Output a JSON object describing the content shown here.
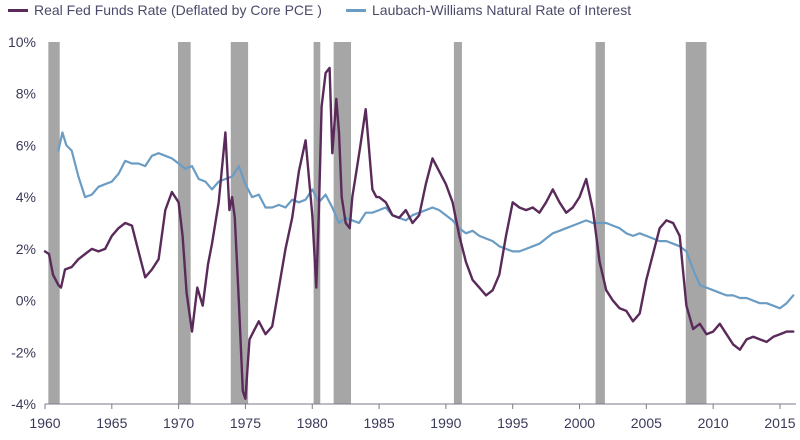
{
  "chart_data": {
    "type": "line",
    "title": "",
    "xlabel": "",
    "ylabel": "",
    "xlim": [
      1960,
      2016.2
    ],
    "ylim": [
      -4,
      10
    ],
    "x_ticks": [
      1960,
      1965,
      1970,
      1975,
      1980,
      1985,
      1990,
      1995,
      2000,
      2005,
      2010,
      2015
    ],
    "y_ticks": [
      -4,
      -2,
      0,
      2,
      4,
      6,
      8,
      10
    ],
    "y_tick_labels": [
      "-4%",
      "-2%",
      "0%",
      "2%",
      "4%",
      "6%",
      "8%",
      "10%"
    ],
    "grid": false,
    "legend_position": "top",
    "recessions": [
      [
        1960.25,
        1961.1
      ],
      [
        1969.95,
        1970.9
      ],
      [
        1973.9,
        1975.2
      ],
      [
        1980.1,
        1980.6
      ],
      [
        1981.6,
        1982.9
      ],
      [
        1990.6,
        1991.2
      ],
      [
        2001.2,
        2001.9
      ],
      [
        2007.95,
        2009.5
      ]
    ],
    "series": [
      {
        "name": "Real Fed Funds Rate (Deflated by Core PCE )",
        "color": "#5a2a5a",
        "x": [
          1960.0,
          1960.3,
          1960.6,
          1961.0,
          1961.2,
          1961.5,
          1962.0,
          1962.5,
          1963.0,
          1963.5,
          1964.0,
          1964.5,
          1965.0,
          1965.5,
          1966.0,
          1966.5,
          1967.0,
          1967.5,
          1968.0,
          1968.5,
          1969.0,
          1969.5,
          1970.0,
          1970.3,
          1970.6,
          1971.0,
          1971.4,
          1971.8,
          1972.2,
          1972.5,
          1973.0,
          1973.5,
          1973.8,
          1974.0,
          1974.2,
          1974.5,
          1974.8,
          1975.0,
          1975.3,
          1975.6,
          1976.0,
          1976.5,
          1977.0,
          1977.5,
          1978.0,
          1978.5,
          1979.0,
          1979.5,
          1980.0,
          1980.3,
          1980.5,
          1980.7,
          1981.0,
          1981.3,
          1981.5,
          1981.8,
          1982.0,
          1982.2,
          1982.5,
          1982.8,
          1983.0,
          1983.3,
          1983.6,
          1984.0,
          1984.5,
          1984.8,
          1985.0,
          1985.5,
          1986.0,
          1986.5,
          1987.0,
          1987.5,
          1988.0,
          1988.5,
          1989.0,
          1989.5,
          1990.0,
          1990.5,
          1991.0,
          1991.5,
          1992.0,
          1992.5,
          1993.0,
          1993.5,
          1994.0,
          1994.5,
          1995.0,
          1995.5,
          1996.0,
          1996.5,
          1997.0,
          1997.5,
          1998.0,
          1998.5,
          1999.0,
          1999.5,
          2000.0,
          2000.5,
          2001.0,
          2001.5,
          2002.0,
          2002.5,
          2003.0,
          2003.5,
          2004.0,
          2004.5,
          2005.0,
          2005.5,
          2006.0,
          2006.5,
          2007.0,
          2007.5,
          2008.0,
          2008.5,
          2009.0,
          2009.5,
          2010.0,
          2010.5,
          2011.0,
          2011.5,
          2012.0,
          2012.5,
          2013.0,
          2013.5,
          2014.0,
          2014.5,
          2015.0,
          2015.5,
          2016.0
        ],
        "values": [
          1.9,
          1.8,
          1.0,
          0.6,
          0.5,
          1.2,
          1.3,
          1.6,
          1.8,
          2.0,
          1.9,
          2.0,
          2.5,
          2.8,
          3.0,
          2.9,
          1.9,
          0.9,
          1.2,
          1.6,
          3.5,
          4.2,
          3.8,
          2.5,
          0.3,
          -1.2,
          0.5,
          -0.2,
          1.4,
          2.2,
          3.8,
          6.5,
          3.5,
          4.0,
          3.2,
          0.0,
          -3.5,
          -3.8,
          -1.5,
          -1.2,
          -0.8,
          -1.3,
          -1.0,
          0.5,
          2.0,
          3.2,
          5.0,
          6.2,
          3.3,
          0.5,
          3.5,
          7.5,
          8.8,
          9.0,
          5.7,
          7.8,
          6.5,
          4.0,
          3.0,
          2.8,
          4.0,
          5.0,
          6.0,
          7.4,
          4.3,
          4.0,
          4.0,
          3.8,
          3.3,
          3.2,
          3.5,
          3.0,
          3.3,
          4.5,
          5.5,
          5.0,
          4.5,
          3.8,
          2.5,
          1.5,
          0.8,
          0.5,
          0.2,
          0.4,
          1.0,
          2.5,
          3.8,
          3.6,
          3.5,
          3.6,
          3.4,
          3.8,
          4.3,
          3.8,
          3.4,
          3.6,
          4.0,
          4.7,
          3.5,
          1.5,
          0.4,
          0.0,
          -0.3,
          -0.4,
          -0.8,
          -0.5,
          0.8,
          1.8,
          2.8,
          3.1,
          3.0,
          2.5,
          -0.2,
          -1.1,
          -0.9,
          -1.3,
          -1.2,
          -0.9,
          -1.3,
          -1.7,
          -1.9,
          -1.5,
          -1.4,
          -1.5,
          -1.6,
          -1.4,
          -1.3,
          -1.2,
          -1.2
        ]
      },
      {
        "name": "Laubach-Williams Natural Rate of Interest",
        "color": "#6a9cc4",
        "x": [
          1961.0,
          1961.3,
          1961.6,
          1962.0,
          1962.5,
          1963.0,
          1963.5,
          1964.0,
          1964.5,
          1965.0,
          1965.5,
          1966.0,
          1966.5,
          1967.0,
          1967.5,
          1968.0,
          1968.5,
          1969.0,
          1969.5,
          1970.0,
          1970.5,
          1971.0,
          1971.5,
          1972.0,
          1972.5,
          1973.0,
          1973.5,
          1974.0,
          1974.5,
          1975.0,
          1975.5,
          1976.0,
          1976.5,
          1977.0,
          1977.5,
          1978.0,
          1978.5,
          1979.0,
          1979.5,
          1980.0,
          1980.5,
          1981.0,
          1981.5,
          1982.0,
          1982.5,
          1983.0,
          1983.5,
          1984.0,
          1984.5,
          1985.0,
          1985.5,
          1986.0,
          1986.5,
          1987.0,
          1987.5,
          1988.0,
          1988.5,
          1989.0,
          1989.5,
          1990.0,
          1990.5,
          1991.0,
          1991.5,
          1992.0,
          1992.5,
          1993.0,
          1993.5,
          1994.0,
          1994.5,
          1995.0,
          1995.5,
          1996.0,
          1996.5,
          1997.0,
          1997.5,
          1998.0,
          1998.5,
          1999.0,
          1999.5,
          2000.0,
          2000.5,
          2001.0,
          2001.5,
          2002.0,
          2002.5,
          2003.0,
          2003.5,
          2004.0,
          2004.5,
          2005.0,
          2005.5,
          2006.0,
          2006.5,
          2007.0,
          2007.5,
          2008.0,
          2008.5,
          2009.0,
          2009.5,
          2010.0,
          2010.5,
          2011.0,
          2011.5,
          2012.0,
          2012.5,
          2013.0,
          2013.5,
          2014.0,
          2014.5,
          2015.0,
          2015.5,
          2016.0
        ],
        "values": [
          5.8,
          6.5,
          6.0,
          5.8,
          4.8,
          4.0,
          4.1,
          4.4,
          4.5,
          4.6,
          4.9,
          5.4,
          5.3,
          5.3,
          5.2,
          5.6,
          5.7,
          5.6,
          5.5,
          5.3,
          5.1,
          5.2,
          4.7,
          4.6,
          4.3,
          4.6,
          4.7,
          4.8,
          5.2,
          4.5,
          4.0,
          4.1,
          3.6,
          3.6,
          3.7,
          3.6,
          3.9,
          3.8,
          3.9,
          4.3,
          3.8,
          4.1,
          3.6,
          3.0,
          3.2,
          3.1,
          3.0,
          3.4,
          3.4,
          3.5,
          3.6,
          3.3,
          3.2,
          3.1,
          3.3,
          3.4,
          3.5,
          3.6,
          3.5,
          3.3,
          3.1,
          2.8,
          2.6,
          2.7,
          2.5,
          2.4,
          2.3,
          2.1,
          2.0,
          1.9,
          1.9,
          2.0,
          2.1,
          2.2,
          2.4,
          2.6,
          2.7,
          2.8,
          2.9,
          3.0,
          3.1,
          3.0,
          3.0,
          3.0,
          2.9,
          2.8,
          2.6,
          2.5,
          2.6,
          2.5,
          2.4,
          2.3,
          2.3,
          2.2,
          2.1,
          1.9,
          1.2,
          0.6,
          0.5,
          0.4,
          0.3,
          0.2,
          0.2,
          0.1,
          0.1,
          0.0,
          -0.1,
          -0.1,
          -0.2,
          -0.3,
          -0.1,
          0.2
        ]
      }
    ]
  }
}
